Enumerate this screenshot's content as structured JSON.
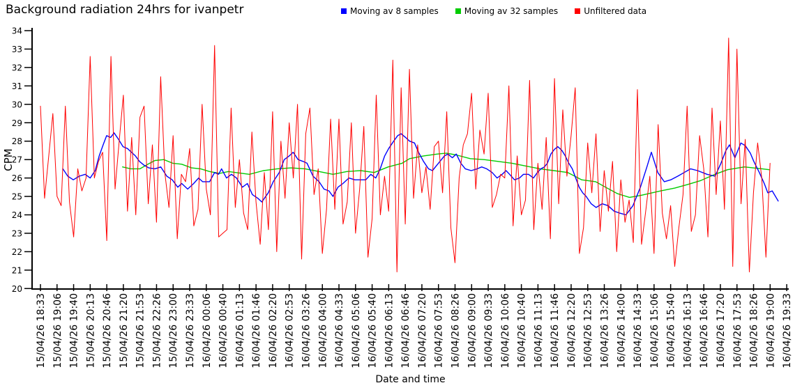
{
  "chart_data": {
    "type": "line",
    "title": "Background radiation 24hrs for ivanpetr",
    "xlabel": "Date and time",
    "ylabel": "CPM",
    "ylim": [
      20,
      34
    ],
    "grid": false,
    "legend_position": "top",
    "y_ticks": [
      20,
      21,
      22,
      23,
      24,
      25,
      26,
      27,
      28,
      29,
      30,
      31,
      32,
      33,
      34
    ],
    "x_tick_labels": [
      "15/04/26 18:33",
      "15/04/26 19:06",
      "15/04/26 19:40",
      "15/04/26 20:13",
      "15/04/26 20:46",
      "15/04/26 21:20",
      "15/04/26 21:53",
      "15/04/26 22:26",
      "15/04/26 23:00",
      "15/04/26 23:33",
      "16/04/26 00:06",
      "16/04/26 00:40",
      "16/04/26 01:13",
      "16/04/26 01:46",
      "16/04/26 02:20",
      "16/04/26 02:53",
      "16/04/26 03:26",
      "16/04/26 04:00",
      "16/04/26 04:33",
      "16/04/26 05:06",
      "16/04/26 05:40",
      "16/04/26 06:13",
      "16/04/26 06:46",
      "16/04/26 07:20",
      "16/04/26 07:53",
      "16/04/26 08:26",
      "16/04/26 09:00",
      "16/04/26 09:33",
      "16/04/26 10:06",
      "16/04/26 10:40",
      "16/04/26 11:13",
      "16/04/26 11:46",
      "16/04/26 12:20",
      "16/04/26 12:53",
      "16/04/26 13:26",
      "16/04/26 14:00",
      "16/04/26 14:33",
      "16/04/26 15:06",
      "16/04/26 15:40",
      "16/04/26 16:13",
      "16/04/26 16:46",
      "16/04/26 17:20",
      "16/04/26 17:53",
      "16/04/26 18:26",
      "16/04/26 19:00",
      "16/04/26 19:33"
    ],
    "x_axis_total_minutes": 1500,
    "series": [
      {
        "name": "Moving av 8 samples",
        "color": "#0000ff",
        "kind": "moving-average",
        "window_samples": 8,
        "points": [
          [
            45,
            26.5
          ],
          [
            55,
            26.1
          ],
          [
            66,
            25.9
          ],
          [
            78,
            26.1
          ],
          [
            90,
            26.2
          ],
          [
            100,
            26.0
          ],
          [
            110,
            26.4
          ],
          [
            118,
            27.2
          ],
          [
            126,
            27.8
          ],
          [
            133,
            28.3
          ],
          [
            141,
            28.2
          ],
          [
            148,
            28.45
          ],
          [
            157,
            28.1
          ],
          [
            166,
            27.7
          ],
          [
            175,
            27.6
          ],
          [
            183,
            27.4
          ],
          [
            191,
            27.2
          ],
          [
            199,
            26.9
          ],
          [
            208,
            26.7
          ],
          [
            218,
            26.55
          ],
          [
            230,
            26.5
          ],
          [
            242,
            26.6
          ],
          [
            254,
            26.1
          ],
          [
            265,
            25.9
          ],
          [
            276,
            25.5
          ],
          [
            284,
            25.7
          ],
          [
            296,
            25.4
          ],
          [
            308,
            25.7
          ],
          [
            318,
            26.0
          ],
          [
            326,
            25.8
          ],
          [
            340,
            25.8
          ],
          [
            350,
            26.3
          ],
          [
            358,
            26.2
          ],
          [
            364,
            26.5
          ],
          [
            374,
            26.0
          ],
          [
            384,
            26.2
          ],
          [
            394,
            26.0
          ],
          [
            406,
            25.5
          ],
          [
            416,
            25.7
          ],
          [
            426,
            25.1
          ],
          [
            437,
            24.9
          ],
          [
            445,
            24.7
          ],
          [
            458,
            25.2
          ],
          [
            468,
            25.8
          ],
          [
            480,
            26.3
          ],
          [
            490,
            27.0
          ],
          [
            500,
            27.2
          ],
          [
            508,
            27.4
          ],
          [
            518,
            27.0
          ],
          [
            528,
            26.9
          ],
          [
            536,
            26.8
          ],
          [
            548,
            26.1
          ],
          [
            560,
            25.8
          ],
          [
            570,
            25.4
          ],
          [
            580,
            25.3
          ],
          [
            588,
            25.0
          ],
          [
            598,
            25.5
          ],
          [
            608,
            25.7
          ],
          [
            620,
            26.0
          ],
          [
            632,
            25.9
          ],
          [
            644,
            25.9
          ],
          [
            654,
            25.9
          ],
          [
            664,
            26.2
          ],
          [
            674,
            26.0
          ],
          [
            683,
            26.5
          ],
          [
            692,
            27.2
          ],
          [
            700,
            27.6
          ],
          [
            710,
            28.0
          ],
          [
            718,
            28.3
          ],
          [
            725,
            28.4
          ],
          [
            734,
            28.2
          ],
          [
            742,
            28.0
          ],
          [
            752,
            27.9
          ],
          [
            760,
            27.4
          ],
          [
            770,
            26.9
          ],
          [
            780,
            26.5
          ],
          [
            788,
            26.4
          ],
          [
            797,
            26.7
          ],
          [
            803,
            26.9
          ],
          [
            812,
            27.2
          ],
          [
            819,
            27.3
          ],
          [
            828,
            27.1
          ],
          [
            836,
            27.3
          ],
          [
            845,
            26.8
          ],
          [
            854,
            26.5
          ],
          [
            866,
            26.4
          ],
          [
            878,
            26.5
          ],
          [
            887,
            26.6
          ],
          [
            897,
            26.5
          ],
          [
            908,
            26.3
          ],
          [
            918,
            26.0
          ],
          [
            928,
            26.2
          ],
          [
            936,
            26.4
          ],
          [
            943,
            26.2
          ],
          [
            953,
            25.9
          ],
          [
            963,
            26.0
          ],
          [
            971,
            26.2
          ],
          [
            981,
            26.2
          ],
          [
            991,
            26.0
          ],
          [
            999,
            26.3
          ],
          [
            1006,
            26.5
          ],
          [
            1013,
            26.6
          ],
          [
            1019,
            26.8
          ],
          [
            1026,
            27.3
          ],
          [
            1033,
            27.55
          ],
          [
            1040,
            27.7
          ],
          [
            1048,
            27.5
          ],
          [
            1055,
            27.2
          ],
          [
            1062,
            26.8
          ],
          [
            1069,
            26.5
          ],
          [
            1076,
            26.0
          ],
          [
            1083,
            25.5
          ],
          [
            1090,
            25.2
          ],
          [
            1097,
            25.0
          ],
          [
            1107,
            24.6
          ],
          [
            1117,
            24.4
          ],
          [
            1129,
            24.6
          ],
          [
            1141,
            24.5
          ],
          [
            1153,
            24.2
          ],
          [
            1164,
            24.1
          ],
          [
            1177,
            24.0
          ],
          [
            1191,
            24.5
          ],
          [
            1206,
            25.5
          ],
          [
            1219,
            26.6
          ],
          [
            1228,
            27.4
          ],
          [
            1241,
            26.3
          ],
          [
            1254,
            25.8
          ],
          [
            1267,
            25.9
          ],
          [
            1281,
            26.1
          ],
          [
            1294,
            26.3
          ],
          [
            1307,
            26.5
          ],
          [
            1321,
            26.4
          ],
          [
            1340,
            26.2
          ],
          [
            1356,
            26.1
          ],
          [
            1368,
            26.8
          ],
          [
            1378,
            27.5
          ],
          [
            1385,
            27.8
          ],
          [
            1396,
            27.1
          ],
          [
            1408,
            27.9
          ],
          [
            1417,
            27.75
          ],
          [
            1427,
            27.35
          ],
          [
            1434,
            26.9
          ],
          [
            1445,
            26.3
          ],
          [
            1455,
            25.7
          ],
          [
            1462,
            25.2
          ],
          [
            1471,
            25.3
          ],
          [
            1483,
            24.75
          ]
        ]
      },
      {
        "name": "Moving av 32 samples",
        "color": "#00cc00",
        "kind": "moving-average",
        "window_samples": 32,
        "points": [
          [
            165,
            26.6
          ],
          [
            182,
            26.5
          ],
          [
            200,
            26.5
          ],
          [
            216,
            26.75
          ],
          [
            230,
            26.95
          ],
          [
            248,
            27.0
          ],
          [
            266,
            26.8
          ],
          [
            284,
            26.75
          ],
          [
            304,
            26.55
          ],
          [
            322,
            26.5
          ],
          [
            340,
            26.35
          ],
          [
            360,
            26.25
          ],
          [
            378,
            26.35
          ],
          [
            392,
            26.3
          ],
          [
            420,
            26.2
          ],
          [
            448,
            26.4
          ],
          [
            476,
            26.5
          ],
          [
            504,
            26.55
          ],
          [
            532,
            26.5
          ],
          [
            560,
            26.35
          ],
          [
            588,
            26.2
          ],
          [
            616,
            26.35
          ],
          [
            644,
            26.4
          ],
          [
            671,
            26.3
          ],
          [
            699,
            26.6
          ],
          [
            727,
            26.8
          ],
          [
            742,
            27.05
          ],
          [
            770,
            27.2
          ],
          [
            798,
            27.3
          ],
          [
            816,
            27.35
          ],
          [
            836,
            27.25
          ],
          [
            864,
            27.05
          ],
          [
            892,
            27.0
          ],
          [
            920,
            26.9
          ],
          [
            948,
            26.8
          ],
          [
            976,
            26.65
          ],
          [
            1004,
            26.5
          ],
          [
            1032,
            26.4
          ],
          [
            1060,
            26.3
          ],
          [
            1088,
            25.9
          ],
          [
            1116,
            25.8
          ],
          [
            1136,
            25.5
          ],
          [
            1160,
            25.15
          ],
          [
            1184,
            24.95
          ],
          [
            1206,
            25.05
          ],
          [
            1247,
            25.3
          ],
          [
            1275,
            25.45
          ],
          [
            1301,
            25.65
          ],
          [
            1326,
            25.85
          ],
          [
            1356,
            26.2
          ],
          [
            1381,
            26.45
          ],
          [
            1415,
            26.6
          ],
          [
            1451,
            26.5
          ],
          [
            1465,
            26.45
          ]
        ]
      },
      {
        "name": "Unfiltered data",
        "color": "#ff0000",
        "kind": "raw",
        "t_start_minutes": 0,
        "t_step_minutes": 8.3333,
        "values": [
          29.9,
          24.9,
          27.2,
          29.5,
          25.0,
          24.5,
          29.9,
          24.7,
          22.8,
          26.5,
          25.3,
          26.0,
          32.6,
          26.0,
          26.9,
          27.4,
          22.6,
          32.6,
          25.4,
          28.0,
          30.5,
          24.2,
          28.2,
          24.0,
          29.3,
          29.9,
          24.6,
          27.8,
          23.6,
          31.5,
          26.3,
          24.4,
          28.3,
          22.7,
          26.2,
          25.8,
          27.6,
          23.4,
          24.3,
          30.0,
          25.4,
          24.0,
          33.2,
          22.8,
          23.0,
          23.2,
          29.8,
          24.4,
          27.0,
          24.1,
          23.2,
          28.5,
          24.7,
          22.4,
          26.3,
          23.2,
          29.6,
          22.0,
          28.0,
          24.9,
          29.0,
          26.0,
          30.0,
          21.6,
          28.4,
          29.8,
          25.1,
          26.5,
          21.9,
          24.3,
          29.2,
          24.3,
          29.2,
          23.5,
          24.7,
          29.0,
          23.0,
          25.4,
          28.8,
          21.7,
          23.8,
          30.5,
          24.0,
          26.1,
          24.2,
          32.4,
          20.9,
          30.9,
          23.5,
          31.9,
          24.9,
          27.8,
          25.2,
          26.6,
          24.3,
          27.7,
          28.0,
          25.2,
          29.6,
          23.3,
          21.4,
          26.0,
          27.8,
          28.4,
          30.6,
          25.4,
          28.6,
          27.3,
          30.6,
          24.4,
          25.1,
          26.2,
          26.0,
          31.0,
          23.4,
          27.2,
          24.0,
          24.8,
          31.3,
          23.2,
          26.8,
          24.3,
          28.2,
          22.7,
          31.4,
          24.6,
          29.7,
          26.1,
          28.3,
          30.9,
          21.9,
          23.3,
          27.9,
          25.2,
          28.4,
          23.1,
          26.4,
          24.2,
          26.9,
          22.0,
          25.9,
          23.6,
          24.8,
          22.5,
          30.8,
          22.4,
          24.2,
          26.1,
          21.9,
          28.9,
          24.1,
          22.7,
          24.5,
          21.2,
          23.3,
          25.1,
          29.9,
          23.1,
          24.0,
          28.3,
          26.5,
          22.8,
          29.8,
          25.1,
          29.1,
          24.3,
          33.6,
          21.2,
          33.0,
          24.6,
          28.1,
          20.9,
          25.2,
          27.9,
          26.0,
          21.7,
          26.8
        ]
      }
    ]
  }
}
